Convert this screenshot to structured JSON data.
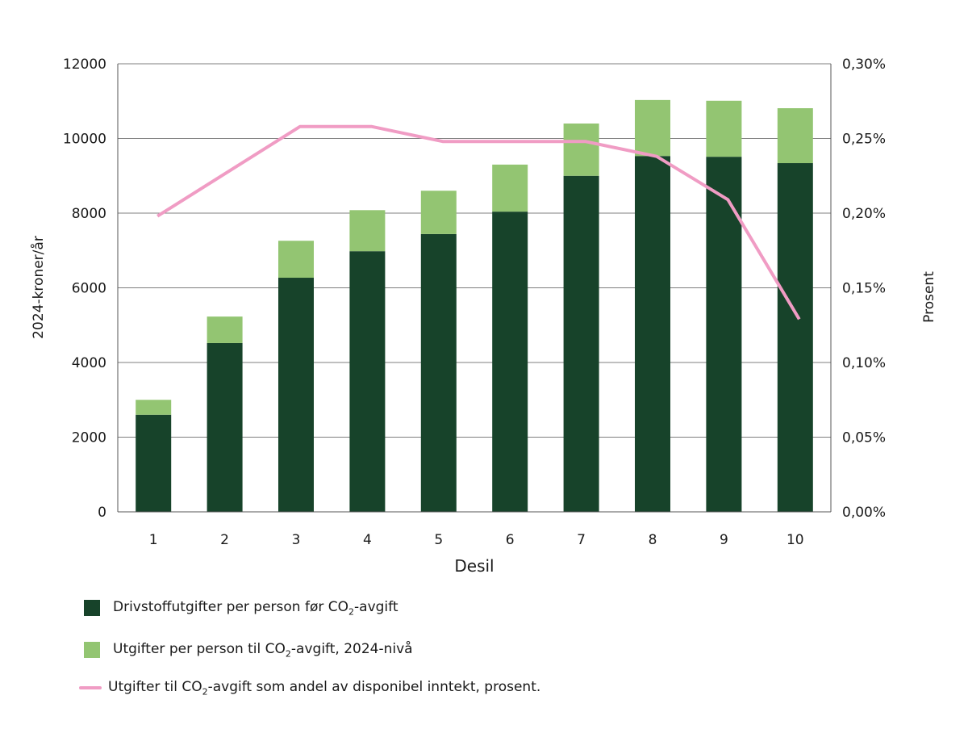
{
  "chart_data": {
    "type": "bar",
    "stacked": true,
    "categories": [
      "1",
      "2",
      "3",
      "4",
      "5",
      "6",
      "7",
      "8",
      "9",
      "10"
    ],
    "xlabel": "Desil",
    "ylabel": "2024-kroner/år",
    "ylabel_right": "Prosent",
    "ylim": [
      0,
      12000
    ],
    "yticks": [
      "0",
      "2000",
      "4000",
      "6000",
      "8000",
      "10000",
      "12000"
    ],
    "ylim_right": [
      0,
      0.3
    ],
    "yticks_right": [
      "0,00%",
      "0,05%",
      "0,10%",
      "0,15%",
      "0,20%",
      "0,25%",
      "0,30%"
    ],
    "grid": true,
    "legend_position": "bottom",
    "series": [
      {
        "name_parts": [
          "Drivstoffutgifter per person før CO",
          "2",
          "-avgift"
        ],
        "type": "bar",
        "color": "#17432a",
        "values": [
          2600,
          4520,
          6270,
          6980,
          7440,
          8040,
          9000,
          9530,
          9510,
          9340
        ]
      },
      {
        "name_parts": [
          "Utgifter per person til CO",
          "2",
          "-avgift, 2024-nivå"
        ],
        "type": "bar",
        "color": "#93c572",
        "values": [
          400,
          710,
          990,
          1100,
          1160,
          1260,
          1400,
          1500,
          1500,
          1470
        ]
      },
      {
        "name_parts": [
          "Utgifter til CO",
          "2",
          "-avgift som andel av disponibel inntekt, prosent."
        ],
        "type": "line",
        "axis": "right",
        "color": "#f09cc4",
        "values": [
          0.198,
          0.228,
          0.258,
          0.258,
          0.248,
          0.248,
          0.248,
          0.238,
          0.209,
          0.129
        ]
      }
    ]
  }
}
